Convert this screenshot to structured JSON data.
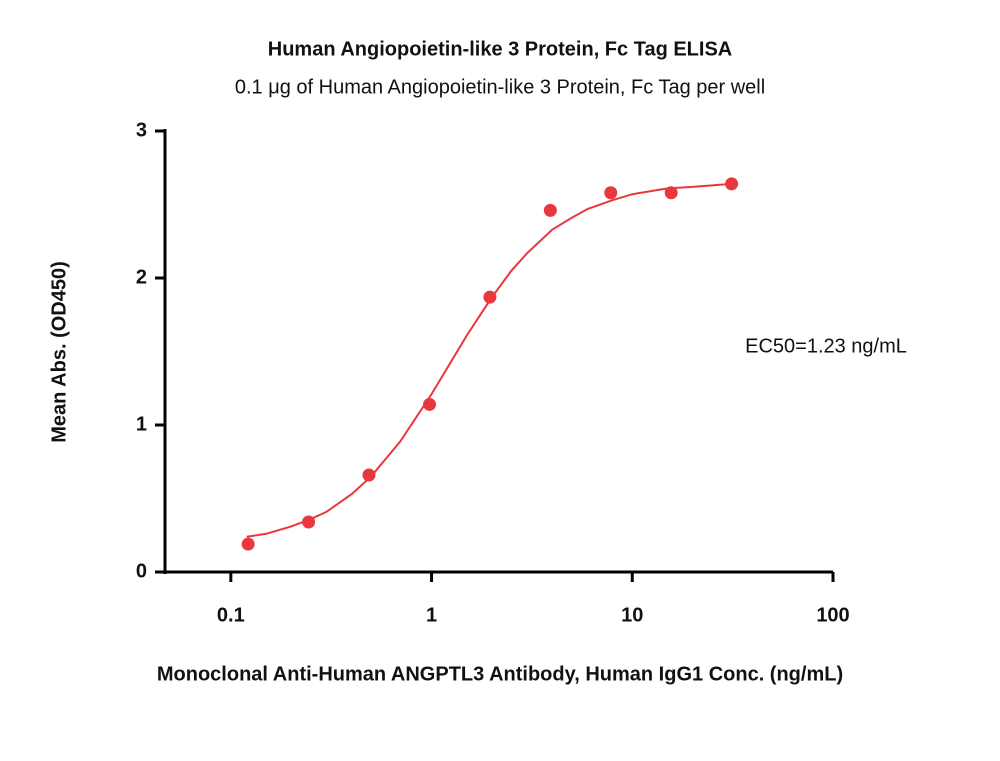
{
  "chart_data": {
    "type": "scatter",
    "title": "Human Angiopoietin-like 3 Protein, Fc Tag ELISA",
    "subtitle": "0.1 μg of Human Angiopoietin-like 3 Protein, Fc Tag per well",
    "x_label": "Monoclonal Anti-Human ANGPTL3 Antibody, Human IgG1 Conc. (ng/mL)",
    "y_label": "Mean Abs. (OD450)",
    "annotation": "EC50=1.23 ng/mL",
    "xscale": "log",
    "xlim": [
      0.047,
      100
    ],
    "xticks": [
      0.1,
      1,
      10,
      100
    ],
    "ylim": [
      0,
      3
    ],
    "yticks": [
      0,
      1,
      2,
      3
    ],
    "color": "#e8383d",
    "x": [
      0.122,
      0.244,
      0.488,
      0.977,
      1.953,
      3.906,
      7.813,
      15.625,
      31.25
    ],
    "values": [
      0.19,
      0.34,
      0.66,
      1.14,
      1.87,
      2.46,
      2.58,
      2.58,
      2.64
    ],
    "fit": {
      "x": [
        0.12,
        0.15,
        0.2,
        0.25,
        0.3,
        0.4,
        0.5,
        0.6,
        0.7,
        0.8,
        1,
        1.5,
        2,
        2.5,
        3,
        4,
        5,
        6,
        8,
        10,
        15,
        20,
        31.25
      ],
      "values": [
        0.24,
        0.26,
        0.31,
        0.36,
        0.41,
        0.53,
        0.65,
        0.78,
        0.89,
        1.01,
        1.21,
        1.61,
        1.87,
        2.05,
        2.17,
        2.33,
        2.41,
        2.47,
        2.53,
        2.57,
        2.61,
        2.62,
        2.64
      ]
    }
  }
}
